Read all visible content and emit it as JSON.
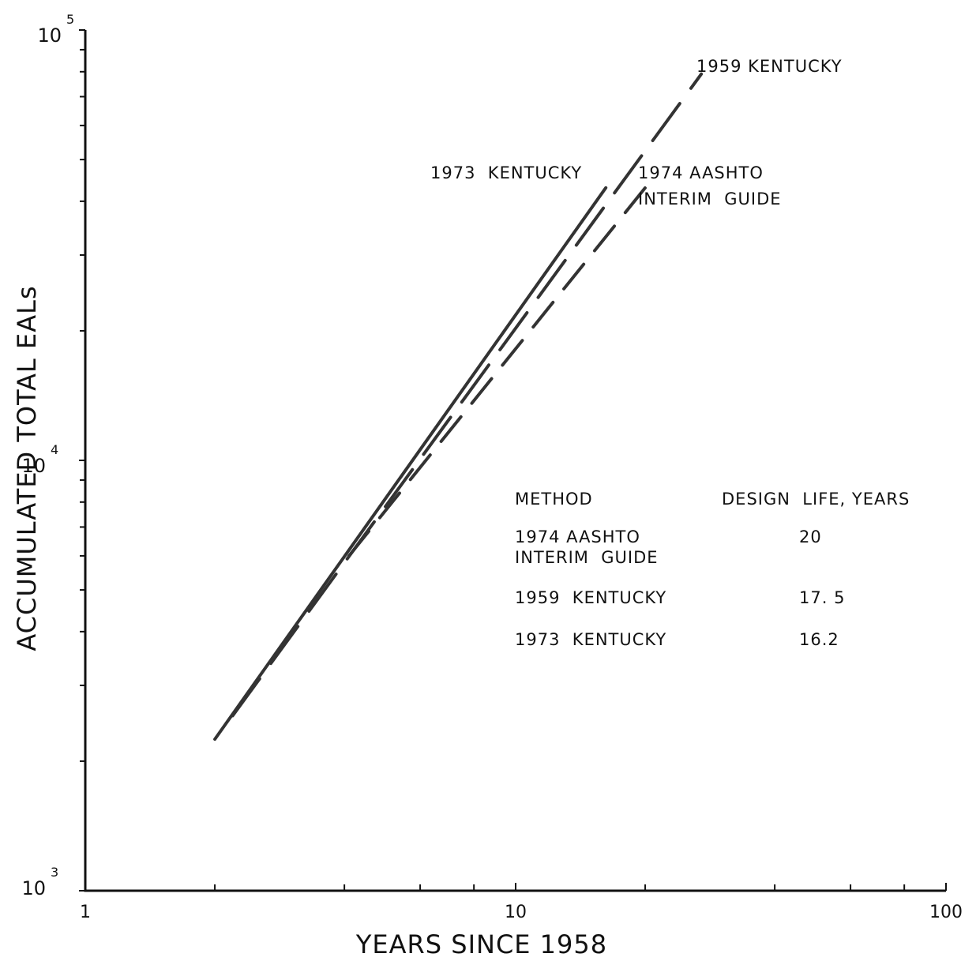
{
  "chart_data": {
    "type": "line",
    "title": "",
    "xlabel": "YEARS SINCE 1958",
    "ylabel": "ACCUMULATED TOTAL EALs",
    "x_scale": "log",
    "y_scale": "log",
    "xlim": [
      1,
      100
    ],
    "ylim": [
      1000,
      100000
    ],
    "x_tick_labels": [
      "1",
      "10",
      "100"
    ],
    "y_tick_labels": [
      {
        "value": 1000,
        "base": "10",
        "exp": "3"
      },
      {
        "value": 10000,
        "base": "10",
        "exp": "4"
      },
      {
        "value": 100000,
        "base": "10",
        "exp": "5"
      }
    ],
    "grid": false,
    "series": [
      {
        "name": "1959 KENTUCKY",
        "style": "long-dash",
        "x": [
          2.2,
          27
        ],
        "y": [
          2550,
          79000
        ]
      },
      {
        "name": "1973 KENTUCKY",
        "style": "solid",
        "x": [
          2,
          16.2
        ],
        "y": [
          2250,
          43000
        ]
      },
      {
        "name": "1974 AASHTO INTERIM GUIDE",
        "style": "dash",
        "x": [
          4.1,
          20
        ],
        "y": [
          6000,
          43000
        ]
      }
    ],
    "annotations": [
      {
        "text": "1959 KENTUCKY"
      },
      {
        "text": "1973  KENTUCKY"
      },
      {
        "text": "1974 AASHTO"
      },
      {
        "text": "INTERIM  GUIDE"
      }
    ],
    "table": {
      "headers": [
        "METHOD",
        "DESIGN  LIFE, YEARS"
      ],
      "rows": [
        {
          "method": "1974 AASHTO",
          "method_line2": "INTERIM  GUIDE",
          "life": "20"
        },
        {
          "method": "1959  KENTUCKY",
          "method_line2": "",
          "life": "17. 5"
        },
        {
          "method": "1973  KENTUCKY",
          "method_line2": "",
          "life": "16.2"
        }
      ]
    }
  }
}
